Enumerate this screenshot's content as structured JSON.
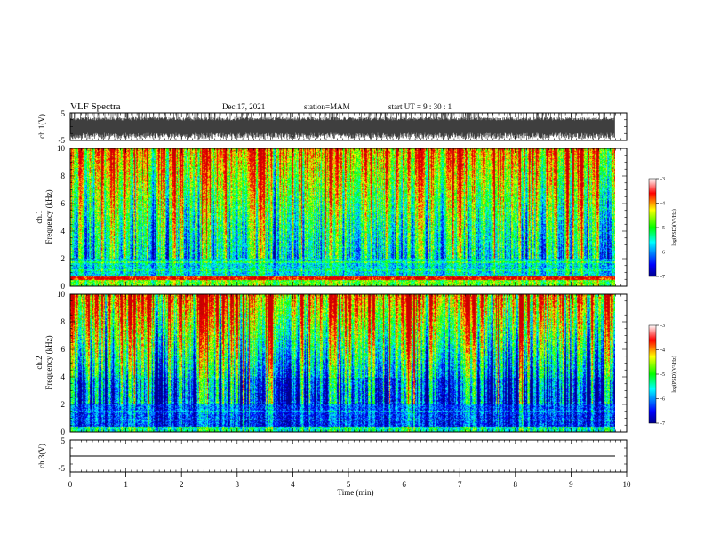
{
  "header": {
    "title": "VLF Spectra",
    "date": "Dec.17, 2021",
    "station": "station=MAM",
    "start": "start  UT  =   9  : 30 : 1"
  },
  "colors": {
    "colormap": [
      "#00008c",
      "#0000ff",
      "#00ffff",
      "#00ff00",
      "#ffff00",
      "#ff0000",
      "#c80000"
    ]
  },
  "chart_data": [
    {
      "type": "line",
      "panel": "ch1-waveform",
      "ylabel": "ch.1(V)",
      "ylim": [
        -5,
        5
      ],
      "ytick_labels": [
        "5",
        "-5"
      ],
      "description_values": {
        "waveform_amplitude_min_V": -5,
        "waveform_amplitude_max_V": 5
      }
    },
    {
      "type": "heatmap",
      "panel": "ch1-spectrogram",
      "ylabel_line1": "ch.1",
      "ylabel_line2": "Frequency (kHz)",
      "ylim": [
        0,
        10
      ],
      "yticks": [
        0,
        2,
        4,
        6,
        8,
        10
      ],
      "colorbar": {
        "label": "log(PSD)(V²/Hz)",
        "range": [
          -7,
          -3
        ],
        "ticks": [
          -7,
          -6,
          -5,
          -4,
          -3
        ]
      }
    },
    {
      "type": "heatmap",
      "panel": "ch2-spectrogram",
      "ylabel_line1": "ch.2",
      "ylabel_line2": "Frequency (kHz)",
      "ylim": [
        0,
        10
      ],
      "yticks": [
        0,
        2,
        4,
        6,
        8,
        10
      ],
      "colorbar": {
        "label": "log(PSD)(V²/Hz)",
        "range": [
          -7,
          -3
        ],
        "ticks": [
          -7,
          -6,
          -5,
          -4,
          -3
        ]
      }
    },
    {
      "type": "line",
      "panel": "ch3-waveform",
      "ylabel": "ch.3(V)",
      "ylim": [
        -5,
        5
      ],
      "ytick_labels": [
        "5",
        "-5"
      ],
      "values": [
        0,
        0
      ]
    }
  ],
  "xaxis": {
    "label": "Time (min)",
    "xlim": [
      0,
      10
    ],
    "ticks": [
      0,
      1,
      2,
      3,
      4,
      5,
      6,
      7,
      8,
      9,
      10
    ]
  }
}
